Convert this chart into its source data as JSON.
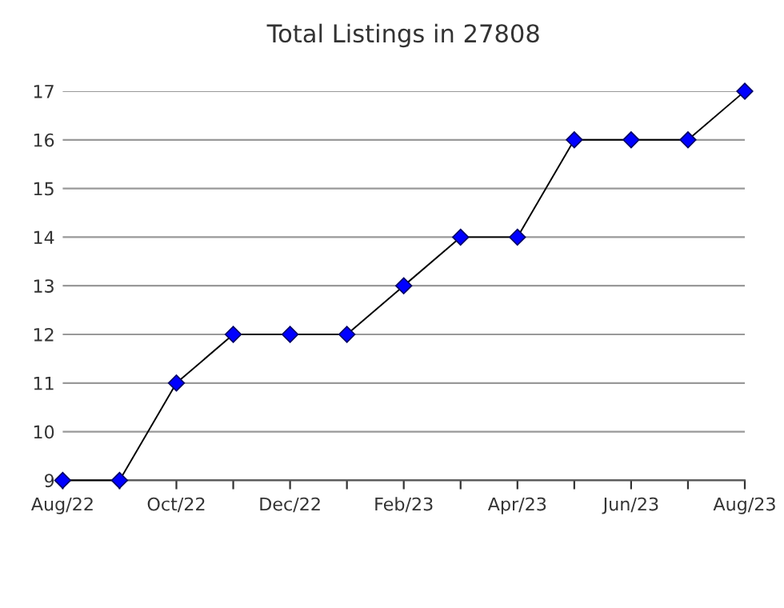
{
  "chart_data": {
    "type": "line",
    "title": "Total Listings in 27808",
    "categories": [
      "Aug/22",
      null,
      "Oct/22",
      null,
      "Dec/22",
      null,
      "Feb/23",
      null,
      "Apr/23",
      null,
      "Jun/23",
      null,
      "Aug/23"
    ],
    "series": [
      {
        "color": "#0000ff",
        "values": [
          9,
          9,
          11,
          12,
          12,
          12,
          13,
          14,
          14,
          16,
          16,
          16,
          17
        ]
      }
    ],
    "ylim": [
      9,
      17
    ],
    "yticks": [
      9,
      10,
      11,
      12,
      13,
      14,
      15,
      16,
      17
    ],
    "grid": "y",
    "marker": "diamond",
    "line_style": "solid"
  }
}
